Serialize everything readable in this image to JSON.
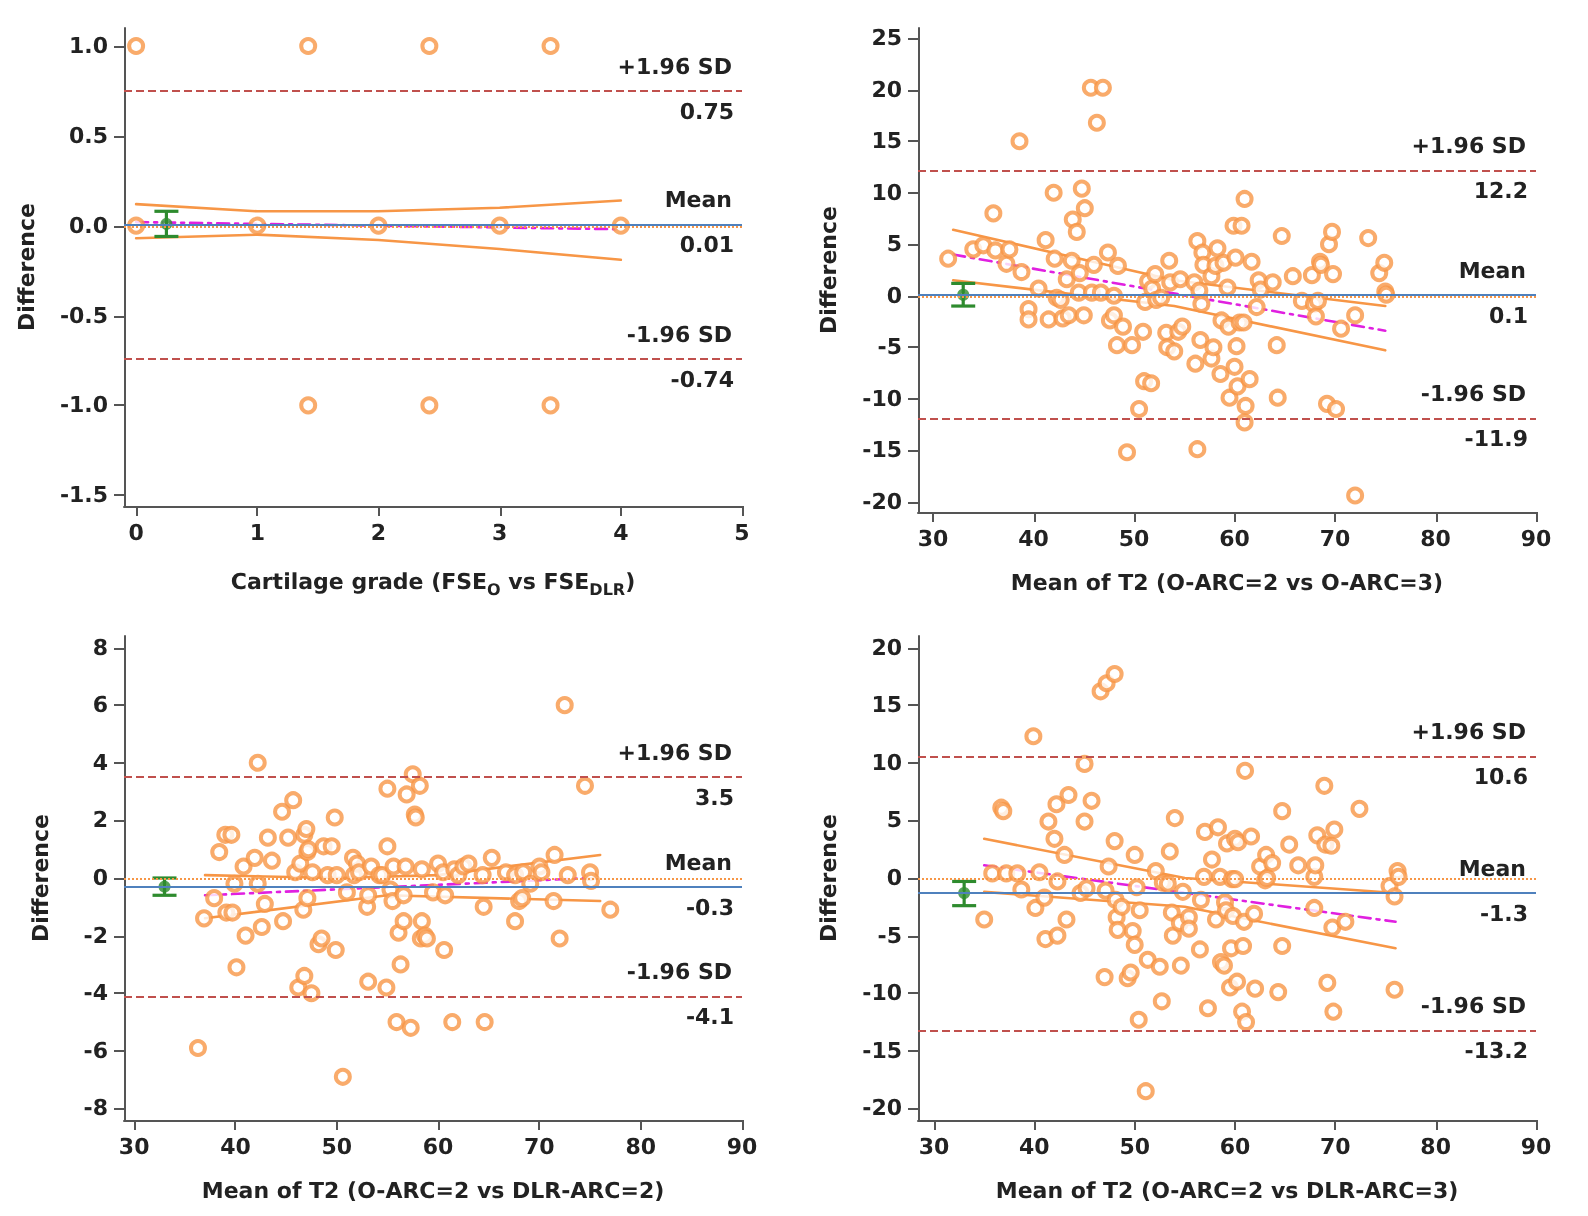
{
  "chart_data": [
    {
      "type": "scatter",
      "annotations": [
        {
          "text": "0.75",
          "y": 0.75
        },
        {
          "text": "0.01",
          "y": 0.01
        },
        {
          "text": "-0.74",
          "y": -0.74
        }
      ],
      "xlabel": "Cartilage grade (FSE$_{O}$ vs FSE$_{DLR}$)",
      "ylabel": "Difference",
      "xlim": [
        -0.1,
        5
      ],
      "xticks": [
        0,
        1,
        2,
        3,
        4,
        5
      ],
      "ylim": [
        -1.56,
        1.1
      ],
      "yticks": [
        {
          "value": -1.5,
          "label": "-1.5"
        },
        {
          "value": -1,
          "label": "-1.0"
        },
        {
          "value": -0.5,
          "label": "-0.5"
        },
        {
          "value": 0,
          "label": "0.0"
        },
        {
          "value": 0.5,
          "label": "0.5"
        },
        {
          "value": 1,
          "label": "1.0"
        }
      ],
      "grid": false,
      "ref_lines": [
        {
          "axis": "y",
          "value": 0,
          "color": "#f79646",
          "line_style": "dotted"
        },
        {
          "axis": "y",
          "value": 0.01,
          "label": "Mean",
          "color": "#4f81bd",
          "line_style": "solid"
        },
        {
          "axis": "y",
          "value": 0.75,
          "label": "+1.96 SD",
          "color": "#c0504d",
          "line_style": "dashed"
        },
        {
          "axis": "y",
          "value": -0.74,
          "label": "-1.96 SD",
          "color": "#c0504d",
          "line_style": "dashed"
        }
      ],
      "series": [
        {
          "type": "scatter",
          "marker": "circle",
          "color": "#f79646",
          "x": [
            0,
            1.42,
            2.42,
            3.42,
            0,
            1,
            2,
            3,
            4,
            1.42,
            2.42,
            3.42
          ],
          "values": [
            1,
            1,
            1,
            1,
            0,
            0,
            0,
            0,
            0,
            -1,
            -1,
            -1
          ]
        },
        {
          "type": "line",
          "marker": "none",
          "line_style": "dashed",
          "color": "#e020e0",
          "x": [
            0,
            4
          ],
          "values": [
            0.02,
            -0.02
          ]
        },
        {
          "type": "line",
          "marker": "none",
          "line_style": "solid",
          "color": "#f79646",
          "x": [
            0,
            1,
            2,
            3,
            4
          ],
          "values": [
            0.12,
            0.08,
            0.08,
            0.1,
            0.14
          ]
        },
        {
          "type": "line",
          "marker": "none",
          "line_style": "solid",
          "color": "#f79646",
          "x": [
            0,
            1,
            2,
            3,
            4
          ],
          "values": [
            -0.07,
            -0.05,
            -0.08,
            -0.13,
            -0.19
          ]
        },
        {
          "type": "scatter",
          "marker": "circle",
          "color": "#2e8b2e",
          "x": [
            0.25
          ],
          "values": [
            0.01
          ],
          "errors": [
            [
              -0.06,
              0.08
            ]
          ]
        }
      ]
    },
    {
      "type": "scatter",
      "annotations": [
        {
          "text": "12.2",
          "y": 12.2
        },
        {
          "text": "0.1",
          "y": 0.1
        },
        {
          "text": "-11.9",
          "y": -11.9
        }
      ],
      "xlabel": "Mean of T2 (O-ARC=2 vs O-ARC=3)",
      "ylabel": "Difference",
      "xlim": [
        28.5,
        90
      ],
      "xticks": [
        30,
        40,
        50,
        60,
        70,
        80,
        90
      ],
      "ylim": [
        -21,
        26
      ],
      "yticks": [
        -20,
        -15,
        -10,
        -5,
        0,
        5,
        10,
        15,
        20,
        25
      ],
      "grid": false,
      "ref_lines": [
        {
          "axis": "y",
          "value": 0,
          "color": "#f79646",
          "line_style": "dotted"
        },
        {
          "axis": "y",
          "value": 0.1,
          "label": "Mean",
          "color": "#4f81bd",
          "line_style": "solid"
        },
        {
          "axis": "y",
          "value": 12.2,
          "label": "+1.96 SD",
          "color": "#c0504d",
          "line_style": "dashed"
        },
        {
          "axis": "y",
          "value": -11.9,
          "label": "-1.96 SD",
          "color": "#c0504d",
          "line_style": "dashed"
        }
      ],
      "series": [
        {
          "type": "scatter",
          "marker": "circle",
          "color": "#f79646",
          "x": [
            31.5,
            34,
            35,
            36,
            36.2,
            37.3,
            37.6,
            38.6,
            38.8,
            39.5,
            39.5,
            40.5,
            41.2,
            41.5,
            42,
            42.1,
            42.3,
            42.7,
            42.9,
            43.3,
            43.5,
            43.8,
            43.9,
            44.3,
            44.5,
            44.6,
            44.8,
            45,
            45.1,
            45.7,
            45.8,
            46,
            46.3,
            46.7,
            46.9,
            47.4,
            47.6,
            48,
            48,
            48.3,
            48.4,
            48.9,
            49.3,
            49.8,
            50.5,
            50.9,
            51,
            51.1,
            51.4,
            51.7,
            51.8,
            52.1,
            52.2,
            52.7,
            53.2,
            53.3,
            53.5,
            53.6,
            54,
            54.4,
            54.6,
            54.8,
            56,
            56.1,
            56.3,
            56.3,
            56.5,
            56.6,
            56.7,
            56.8,
            56.9,
            57.7,
            57.7,
            57.9,
            58.1,
            58.3,
            58.6,
            58.7,
            58.9,
            59.3,
            59.4,
            59.5,
            59.9,
            60,
            60.1,
            60.2,
            60.3,
            60.5,
            60.7,
            60.9,
            61,
            61.1,
            61,
            61.5,
            61.7,
            62.2,
            62.4,
            62.6,
            63.8,
            64.2,
            64.3,
            64.7,
            65.8,
            66.7,
            67.7,
            67.9,
            68.1,
            68.3,
            68.5,
            68.6,
            69.2,
            69.4,
            69.7,
            69.8,
            70.1,
            70.6,
            72,
            72,
            73.3,
            74.4,
            74.9,
            75,
            75.1
          ],
          "values": [
            3.6,
            4.5,
            4.9,
            8,
            4.4,
            3.1,
            4.5,
            15,
            2.3,
            -1.3,
            -2.3,
            0.7,
            5.4,
            -2.3,
            10,
            3.6,
            -0.2,
            -0.4,
            -2.2,
            1.6,
            -1.9,
            3.4,
            7.4,
            6.2,
            0.3,
            2.2,
            10.4,
            -1.9,
            8.5,
            20.2,
            0.3,
            3,
            16.8,
            0.3,
            20.2,
            4.2,
            -2.4,
            -1.9,
            0,
            -4.8,
            2.9,
            -3,
            -15.2,
            -4.8,
            -11,
            -3.5,
            -8.3,
            -0.6,
            1.4,
            -8.5,
            0.7,
            2.1,
            -0.4,
            -0.2,
            -3.6,
            -5,
            3.4,
            1.3,
            -5.4,
            -3.5,
            1.6,
            -3,
            1.3,
            -6.6,
            -14.9,
            5.3,
            0.5,
            -4.3,
            -0.8,
            4.2,
            3,
            -6.1,
            1.9,
            -5,
            2.9,
            4.6,
            -7.6,
            -2.4,
            3.2,
            0.8,
            -3,
            -9.9,
            6.8,
            -6.9,
            3.7,
            -4.9,
            -8.8,
            -2.6,
            6.8,
            -2.6,
            9.4,
            -10.7,
            -12.3,
            -8.1,
            3.3,
            -1.1,
            1.5,
            0.6,
            1.3,
            -4.8,
            -9.9,
            5.8,
            1.9,
            -0.5,
            2,
            -0.8,
            -2,
            -0.5,
            3.3,
            3,
            -10.5,
            5,
            6.2,
            2.1,
            -11,
            -3.2,
            -1.9,
            -19.4,
            5.6,
            2.2,
            3.2,
            0.4,
            0.1
          ]
        },
        {
          "type": "line",
          "marker": "none",
          "line_style": "dashed",
          "color": "#e020e0",
          "x": [
            32,
            75
          ],
          "values": [
            4,
            -3.4
          ]
        },
        {
          "type": "line",
          "marker": "none",
          "line_style": "solid",
          "color": "#f79646",
          "x": [
            32,
            54,
            75
          ],
          "values": [
            6.4,
            1.5,
            -1
          ]
        },
        {
          "type": "line",
          "marker": "none",
          "line_style": "solid",
          "color": "#f79646",
          "x": [
            32,
            54,
            75
          ],
          "values": [
            1.5,
            -1,
            -5.3
          ]
        },
        {
          "type": "scatter",
          "marker": "circle",
          "color": "#2e8b2e",
          "x": [
            33
          ],
          "values": [
            0.1
          ],
          "errors": [
            [
              -1,
              1.2
            ]
          ]
        }
      ]
    },
    {
      "type": "scatter",
      "annotations": [
        {
          "text": "3.5",
          "y": 3.5
        },
        {
          "text": "-0.3",
          "y": -0.3
        },
        {
          "text": "-4.1",
          "y": -4.1
        }
      ],
      "xlabel": "Mean of T2 (O-ARC=2 vs DLR-ARC=2)",
      "ylabel": "Difference",
      "xlim": [
        29,
        90
      ],
      "xticks": [
        30,
        40,
        50,
        60,
        70,
        80,
        90
      ],
      "ylim": [
        -8.4,
        8.4
      ],
      "yticks": [
        -8,
        -6,
        -4,
        -2,
        0,
        2,
        4,
        6,
        8
      ],
      "grid": false,
      "ref_lines": [
        {
          "axis": "y",
          "value": 0,
          "color": "#f79646",
          "line_style": "dotted"
        },
        {
          "axis": "y",
          "value": -0.3,
          "label": "Mean",
          "color": "#4f81bd",
          "line_style": "solid"
        },
        {
          "axis": "y",
          "value": 3.5,
          "label": "+1.96 SD",
          "color": "#c0504d",
          "line_style": "dashed"
        },
        {
          "axis": "y",
          "value": -4.1,
          "label": "-1.96 SD",
          "color": "#c0504d",
          "line_style": "dashed"
        }
      ],
      "series": [
        {
          "type": "scatter",
          "marker": "circle",
          "color": "#f79646",
          "x": [
            36.3,
            36.9,
            37.9,
            38.4,
            39,
            39.1,
            39.6,
            39.7,
            39.9,
            40.1,
            40.8,
            41,
            41.9,
            42.2,
            42.2,
            42.6,
            42.9,
            43.2,
            43.6,
            44.6,
            44.7,
            45.2,
            45.7,
            45.9,
            46.2,
            46.4,
            46.7,
            46.8,
            46.8,
            47,
            47.1,
            47.1,
            47.2,
            47.5,
            47.6,
            48.2,
            48.5,
            48.7,
            49.1,
            49.5,
            49.8,
            49.9,
            50,
            50.6,
            51,
            51.6,
            51.7,
            52,
            52.2,
            53,
            53.1,
            53.1,
            53.4,
            54.2,
            54.5,
            54.9,
            55,
            55,
            55.3,
            55.5,
            55.6,
            55.9,
            56.1,
            56.3,
            56.6,
            56.6,
            56.8,
            56.9,
            57.3,
            57.5,
            57.7,
            57.8,
            58.2,
            58.3,
            58.4,
            58.4,
            58.7,
            58.9,
            59.5,
            60,
            60.5,
            60.6,
            60.7,
            61.4,
            61.6,
            62,
            62.5,
            63,
            64.4,
            64.5,
            64.6,
            65.3,
            66.7,
            67.6,
            67.6,
            68,
            68.3,
            68.4,
            69.1,
            70,
            70.2,
            71.4,
            71.5,
            72,
            72.5,
            72.8,
            74.5,
            75,
            75.1,
            77
          ],
          "values": [
            -5.9,
            -1.4,
            -0.7,
            0.9,
            1.5,
            -1.2,
            1.5,
            -1.2,
            -0.2,
            -3.1,
            0.4,
            -2,
            0.7,
            -0.2,
            4,
            -1.7,
            -0.9,
            1.4,
            0.6,
            2.3,
            -1.5,
            1.4,
            2.7,
            0.2,
            -3.8,
            0.5,
            -1.1,
            1.5,
            -3.4,
            1.7,
            0.9,
            -0.7,
            1,
            -4,
            0.2,
            -2.3,
            -2.1,
            1.1,
            0.1,
            1.1,
            2.1,
            -2.5,
            0.1,
            -6.9,
            -0.5,
            0.7,
            0.1,
            0.5,
            0.2,
            -1,
            -0.6,
            -3.6,
            0.4,
            0.1,
            0.1,
            -3.8,
            1.1,
            3.1,
            -0.4,
            -0.8,
            0.4,
            -5,
            -1.9,
            -3,
            -0.6,
            -1.5,
            0.4,
            2.9,
            -5.2,
            3.6,
            2.2,
            2.1,
            3.2,
            -2.1,
            0.3,
            -1.5,
            -2,
            -2.1,
            -0.5,
            0.5,
            0.2,
            -2.5,
            -0.6,
            -5,
            0.3,
            0.1,
            0.4,
            0.5,
            0.1,
            -1,
            -5,
            0.7,
            0.2,
            0.1,
            -1.5,
            -0.8,
            -0.7,
            0.2,
            -0.2,
            0.4,
            0.2,
            -0.8,
            0.8,
            -2.1,
            6,
            0.1,
            3.2,
            0.2,
            -0.1,
            -1.1
          ]
        },
        {
          "type": "line",
          "marker": "none",
          "line_style": "dashed",
          "color": "#e020e0",
          "x": [
            37,
            75
          ],
          "values": [
            -0.6,
            0
          ]
        },
        {
          "type": "line",
          "marker": "none",
          "line_style": "solid",
          "color": "#f79646",
          "x": [
            37,
            50,
            60,
            76
          ],
          "values": [
            0.1,
            0,
            0.1,
            0.8
          ]
        },
        {
          "type": "line",
          "marker": "none",
          "line_style": "solid",
          "color": "#f79646",
          "x": [
            37,
            55,
            76
          ],
          "values": [
            -1.4,
            -0.6,
            -0.8
          ]
        },
        {
          "type": "scatter",
          "marker": "circle",
          "color": "#2e8b2e",
          "x": [
            33
          ],
          "values": [
            -0.3
          ],
          "errors": [
            [
              -0.6,
              0
            ]
          ]
        }
      ]
    },
    {
      "type": "scatter",
      "annotations": [
        {
          "text": "10.6",
          "y": 10.6
        },
        {
          "text": "-1.3",
          "y": -1.3
        },
        {
          "text": "-13.2",
          "y": -13.2
        }
      ],
      "xlabel": "Mean of T2 (O-ARC=2 vs DLR-ARC=3)",
      "ylabel": "Difference",
      "xlim": [
        28.4,
        90
      ],
      "xticks": [
        30,
        40,
        50,
        60,
        70,
        80,
        90
      ],
      "ylim": [
        -21,
        21
      ],
      "yticks": [
        -20,
        -15,
        -10,
        -5,
        0,
        5,
        10,
        15,
        20
      ],
      "grid": false,
      "ref_lines": [
        {
          "axis": "y",
          "value": 0,
          "color": "#f79646",
          "line_style": "dotted"
        },
        {
          "axis": "y",
          "value": -1.3,
          "label": "Mean",
          "color": "#4f81bd",
          "line_style": "solid"
        },
        {
          "axis": "y",
          "value": 10.6,
          "label": "+1.96 SD",
          "color": "#c0504d",
          "line_style": "dashed"
        },
        {
          "axis": "y",
          "value": -13.2,
          "label": "-1.96 SD",
          "color": "#c0504d",
          "line_style": "dashed"
        }
      ],
      "series": [
        {
          "type": "scatter",
          "marker": "circle",
          "color": "#f79646",
          "x": [
            35,
            35.8,
            36.7,
            36.9,
            37.2,
            38.3,
            38.7,
            39.9,
            40.1,
            40.5,
            41,
            41.1,
            41.4,
            42,
            42.2,
            42.3,
            42.3,
            43,
            43.2,
            43.4,
            44.6,
            45,
            45,
            45.2,
            45.7,
            46.6,
            47,
            47.1,
            47.2,
            47.4,
            48,
            48,
            48.1,
            48.2,
            48.3,
            48.7,
            49.3,
            49.6,
            49.8,
            50,
            50,
            50.2,
            50.4,
            50.5,
            51.1,
            51.3,
            52.1,
            52.7,
            52.5,
            52.8,
            53.3,
            53.5,
            53.7,
            53.8,
            54,
            54.5,
            54.6,
            54.8,
            55.4,
            55.4,
            56.5,
            56.6,
            56.9,
            57,
            57.3,
            57.7,
            58.1,
            58.3,
            58.5,
            58.6,
            58.9,
            59,
            59.1,
            59.2,
            59.5,
            59.6,
            59.7,
            59.8,
            60,
            60,
            60.2,
            60.3,
            60.7,
            60.8,
            60.9,
            61,
            61.1,
            61.6,
            61.9,
            62,
            62.5,
            63,
            63.1,
            63.2,
            63.7,
            64.3,
            64.7,
            64.7,
            65.4,
            66.3,
            67.9,
            67.9,
            68,
            68.2,
            68.9,
            69,
            69.2,
            69.6,
            69.8,
            69.9,
            69.7,
            71,
            72.4,
            75.4,
            75.9,
            75.9,
            76.2,
            76.3
          ],
          "values": [
            -3.6,
            0.4,
            6.1,
            5.8,
            0.4,
            0.4,
            -1,
            12.3,
            -2.6,
            0.5,
            -1.7,
            -5.3,
            4.9,
            3.4,
            6.4,
            -0.3,
            -5,
            2,
            -3.6,
            7.2,
            -1.3,
            9.9,
            4.9,
            -0.9,
            6.7,
            16.2,
            -8.6,
            -1.1,
            16.9,
            1,
            17.7,
            3.2,
            -1.9,
            -3.4,
            -4.5,
            -2.5,
            -8.7,
            -8.2,
            -4.6,
            2,
            -5.8,
            -0.8,
            -12.3,
            -2.8,
            -18.5,
            -7.1,
            0.6,
            -10.7,
            -7.7,
            -0.4,
            -0.5,
            2.3,
            -3,
            -5,
            5.2,
            -3.9,
            -7.6,
            -1.2,
            -3.4,
            -4.4,
            -6.2,
            -1.9,
            0.1,
            4,
            -11.3,
            1.6,
            -3.6,
            4.4,
            0.1,
            -7.3,
            -7.6,
            -2.1,
            -2.8,
            3,
            -9.5,
            -6.1,
            -0.1,
            -3.3,
            -0.1,
            3.4,
            -9,
            3.1,
            -11.6,
            -5.9,
            -3.8,
            9.3,
            -12.5,
            3.6,
            -3.1,
            -9.6,
            1,
            -0.2,
            2,
            0,
            1.3,
            -9.9,
            5.8,
            -5.9,
            2.9,
            1.1,
            -2.6,
            0.1,
            1.1,
            3.7,
            8,
            2.9,
            -9.1,
            2.8,
            -11.6,
            4.2,
            -4.3,
            -3.8,
            6,
            -0.7,
            -9.7,
            -1.6,
            0.6,
            0.1
          ]
        },
        {
          "type": "line",
          "marker": "none",
          "line_style": "dashed",
          "color": "#e020e0",
          "x": [
            35,
            76
          ],
          "values": [
            1.1,
            -3.8
          ]
        },
        {
          "type": "line",
          "marker": "none",
          "line_style": "solid",
          "color": "#f79646",
          "x": [
            35,
            55,
            76
          ],
          "values": [
            3.4,
            0,
            -1.3
          ]
        },
        {
          "type": "line",
          "marker": "none",
          "line_style": "solid",
          "color": "#f79646",
          "x": [
            35,
            55,
            76
          ],
          "values": [
            -1.2,
            -2.5,
            -6.1
          ]
        },
        {
          "type": "scatter",
          "marker": "circle",
          "color": "#2e8b2e",
          "x": [
            33
          ],
          "values": [
            -1.3
          ],
          "errors": [
            [
              -2.4,
              -0.3
            ]
          ]
        }
      ]
    }
  ]
}
